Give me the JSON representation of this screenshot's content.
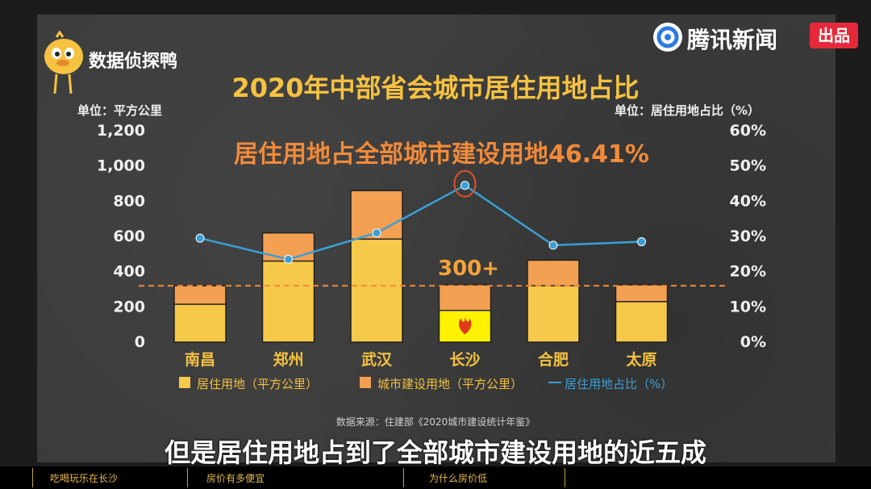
{
  "brand": {
    "name": "数据侦探鸭"
  },
  "news": {
    "name": "腾讯新闻",
    "badge": "出品"
  },
  "source": "数据来源：住建部《2020城市建设统计年鉴》",
  "caption": "但是居住用地占到了全部城市建设用地的近五成",
  "footer": {
    "items": [
      "吃喝玩乐在长沙",
      "房价有多便宜",
      "为什么房价低"
    ]
  },
  "chart_data": {
    "type": "bar",
    "title": "2020年中部省会城市居住用地占比",
    "subtitle": "居住用地占全部城市建设用地46.41%",
    "unit_left": "单位：平方公里",
    "unit_right": "单位：居住用地占比（%）",
    "categories": [
      "南昌",
      "郑州",
      "武汉",
      "长沙",
      "合肥",
      "太原"
    ],
    "left_ticks": [
      "1,200",
      "1,000",
      "800",
      "600",
      "400",
      "200",
      "0"
    ],
    "right_ticks": [
      "60%",
      "50%",
      "40%",
      "30%",
      "20%",
      "10%",
      "0%"
    ],
    "ylim": [
      0,
      1200
    ],
    "y2lim": [
      0,
      60
    ],
    "reference_line": {
      "value": 320,
      "label": "300+"
    },
    "highlight_index": 3,
    "series": [
      {
        "name": "居住用地（平方公里）",
        "type": "stacked-bar",
        "color": "#f7c94a",
        "values": [
          215,
          460,
          585,
          180,
          320,
          230
        ]
      },
      {
        "name": "城市建设用地（平方公里）",
        "type": "stacked-bar",
        "color": "#f3a052",
        "values": [
          320,
          620,
          860,
          325,
          465,
          325
        ]
      },
      {
        "name": "居住用地占比（%）",
        "type": "line",
        "axis": "right",
        "color": "#3a9fd6",
        "values": [
          29.5,
          23.5,
          31,
          44.5,
          27.5,
          28.5
        ]
      }
    ]
  },
  "colors": {
    "board": "#3b3b3b",
    "title": "#f5c242",
    "accent_orange": "#f08a3a",
    "line_blue": "#3a9fd6",
    "highlight": "#fff200"
  }
}
